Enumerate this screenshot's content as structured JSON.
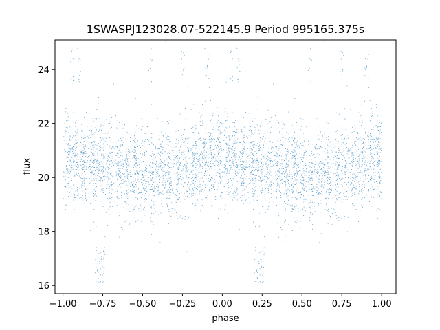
{
  "chart_data": {
    "type": "scatter",
    "title": "1SWASPJ123028.07-522145.9 Period 995165.375s",
    "xlabel": "phase",
    "ylabel": "flux",
    "xlim": [
      -1.05,
      1.09
    ],
    "ylim": [
      15.7,
      25.1
    ],
    "xticks": [
      -1.0,
      -0.75,
      -0.5,
      -0.25,
      0.0,
      0.25,
      0.5,
      0.75,
      1.0
    ],
    "xtick_labels": [
      "−1.00",
      "−0.75",
      "−0.50",
      "−0.25",
      "0.00",
      "0.25",
      "0.50",
      "0.75",
      "1.00"
    ],
    "yticks": [
      16,
      18,
      20,
      22,
      24
    ],
    "ytick_labels": [
      "16",
      "18",
      "20",
      "22",
      "24"
    ],
    "grid": false,
    "marker_color": "#1f77b4",
    "series": [
      {
        "description": "phase-folded light curve, mirrored over phase -1..1",
        "x_range": [
          -1.0,
          1.0
        ],
        "y_center": 20.4,
        "y_spread": 0.8,
        "mirrored": true,
        "density_columns": [
          -0.97,
          -0.92,
          -0.87,
          -0.81,
          -0.76,
          -0.71,
          -0.65,
          -0.6,
          -0.55,
          -0.5,
          -0.44,
          -0.39,
          -0.34,
          -0.28,
          -0.23,
          -0.18,
          -0.12,
          -0.07,
          -0.02,
          0.03,
          0.08,
          0.13,
          0.19,
          0.24,
          0.29,
          0.35,
          0.4,
          0.45,
          0.51,
          0.56,
          0.61,
          0.66,
          0.72,
          0.77,
          0.82,
          0.88,
          0.93,
          0.98
        ],
        "outlier_columns": [
          -0.78,
          -0.75,
          0.22,
          0.25
        ],
        "outlier_y_range": [
          16.1,
          17.5
        ],
        "high_outlier_columns": [
          -0.95,
          -0.9,
          -0.8,
          0.05,
          0.1,
          0.55,
          0.75,
          0.9
        ],
        "high_outlier_y_range": [
          23.5,
          24.8
        ]
      }
    ]
  }
}
